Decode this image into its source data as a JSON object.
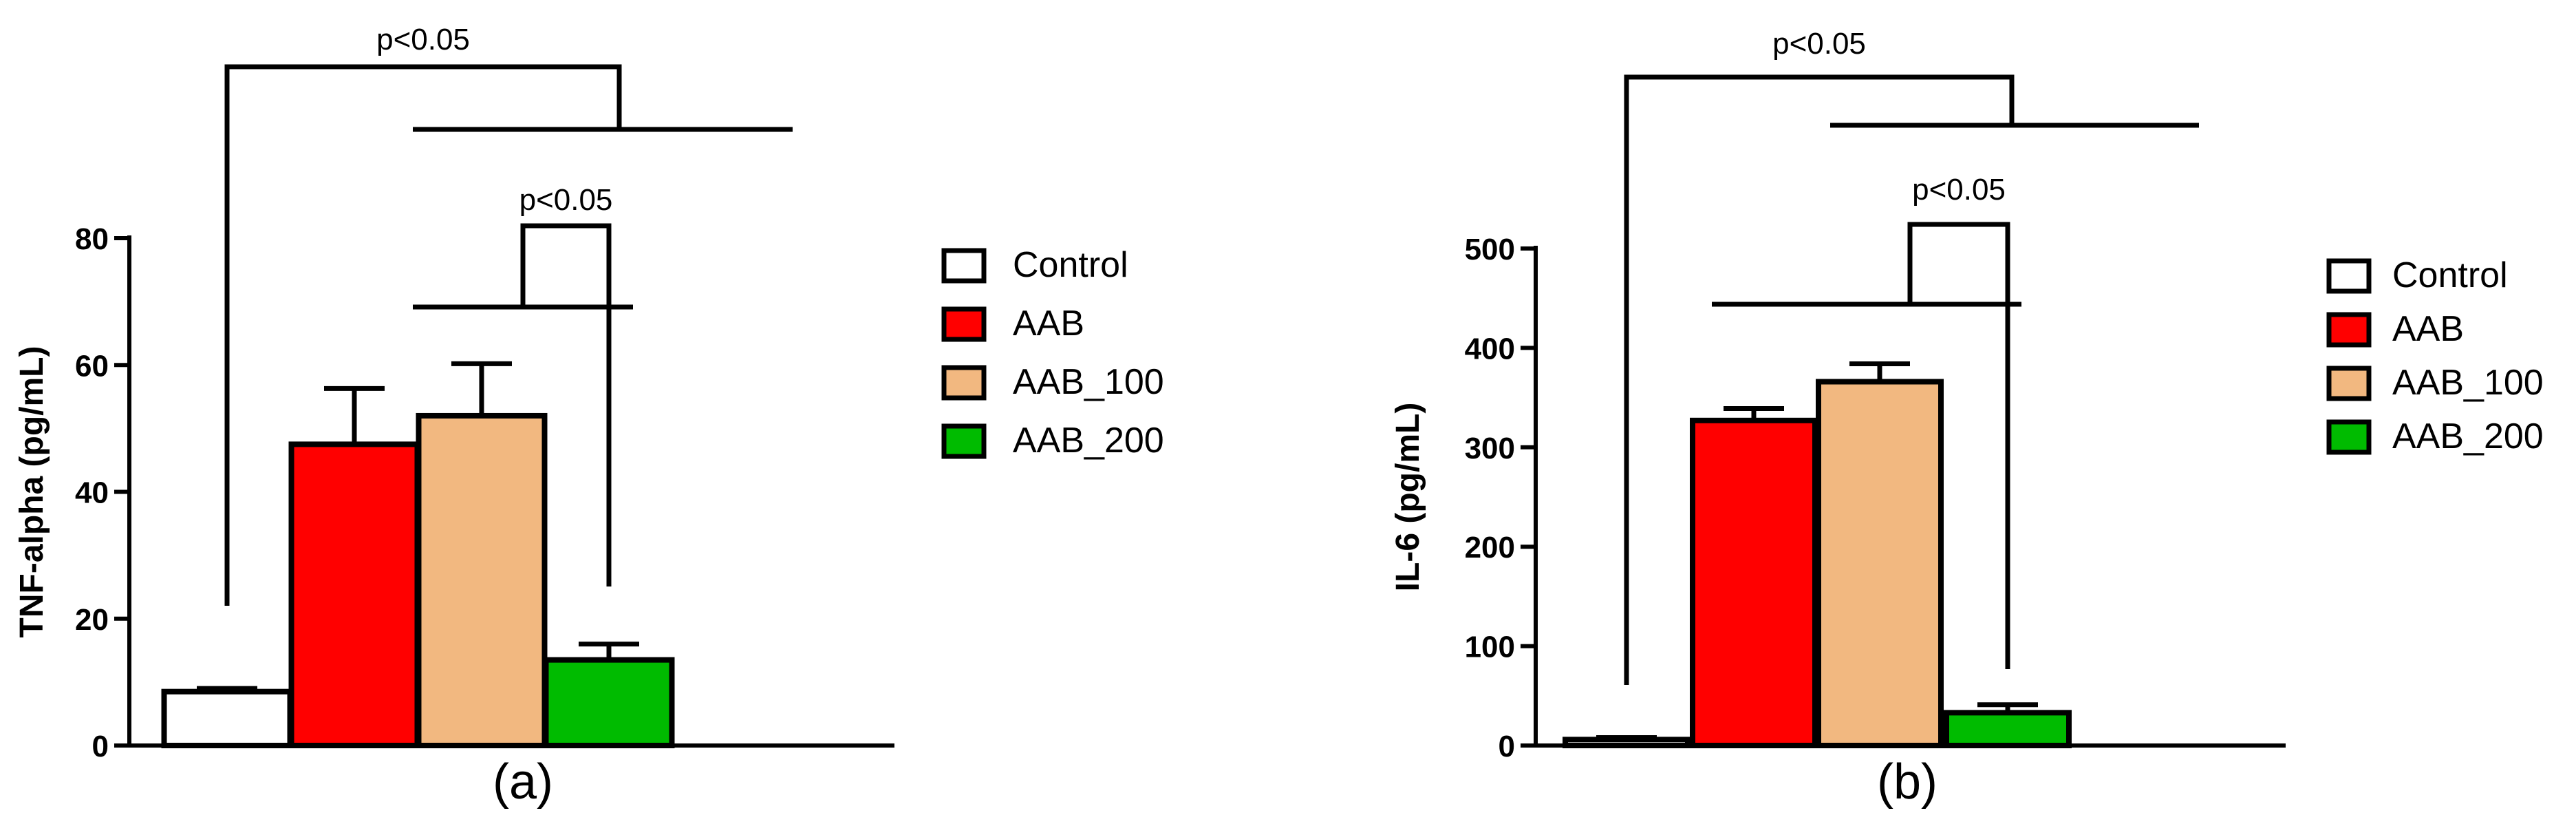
{
  "chart_data": [
    {
      "type": "bar",
      "panel_label": "(a)",
      "title": "",
      "xlabel": "",
      "ylabel": "TNF-alpha (pg/mL)",
      "ylim": [
        0,
        80
      ],
      "yticks": [
        0,
        20,
        40,
        60,
        80
      ],
      "grid": false,
      "categories": [
        "Control",
        "AAB",
        "AAB_100",
        "AAB_200"
      ],
      "values": [
        8.5,
        47.5,
        52,
        13.5
      ],
      "errors": [
        0.5,
        8.8,
        8.2,
        2.5
      ],
      "colors": [
        "#ffffff",
        "#ff0000",
        "#f2b880",
        "#00bb00"
      ],
      "legend": {
        "position": "right",
        "entries": [
          "Control",
          "AAB",
          "AAB_100",
          "AAB_200"
        ]
      },
      "annotations": [
        {
          "text": "p<0.05",
          "from": "Control",
          "to": [
            "AAB",
            "AAB_100",
            "AAB_200"
          ]
        },
        {
          "text": "p<0.05",
          "from": [
            "AAB",
            "AAB_100"
          ],
          "to": "AAB_200"
        }
      ]
    },
    {
      "type": "bar",
      "panel_label": "(b)",
      "title": "",
      "xlabel": "",
      "ylabel": "IL-6 (pg/mL)",
      "ylim": [
        0,
        500
      ],
      "yticks": [
        0,
        100,
        200,
        300,
        400,
        500
      ],
      "grid": false,
      "categories": [
        "Control",
        "AAB",
        "AAB_100",
        "AAB_200"
      ],
      "values": [
        6,
        327,
        366,
        33
      ],
      "errors": [
        2,
        12,
        18,
        8
      ],
      "colors": [
        "#ffffff",
        "#ff0000",
        "#f2b880",
        "#00bb00"
      ],
      "legend": {
        "position": "right",
        "entries": [
          "Control",
          "AAB",
          "AAB_100",
          "AAB_200"
        ]
      },
      "annotations": [
        {
          "text": "p<0.05",
          "from": "Control",
          "to": [
            "AAB",
            "AAB_100",
            "AAB_200"
          ]
        },
        {
          "text": "p<0.05",
          "from": [
            "AAB",
            "AAB_100"
          ],
          "to": "AAB_200"
        }
      ]
    }
  ]
}
